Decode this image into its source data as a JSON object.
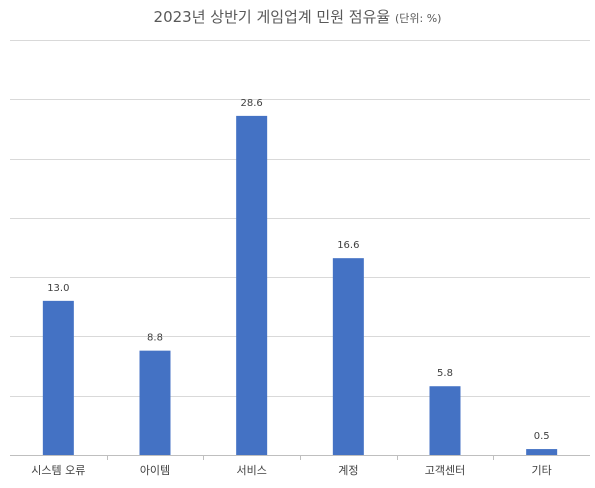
{
  "chart_data": {
    "type": "bar",
    "title": "2023년 상반기 게임업계 민원 점유율",
    "subtitle": "(단위: %)",
    "categories": [
      "시스템 오류",
      "아이템",
      "서비스",
      "계정",
      "고객센터",
      "기타"
    ],
    "values": [
      13.0,
      8.8,
      28.6,
      16.6,
      5.8,
      0.5
    ],
    "value_labels": [
      "13.0",
      "8.8",
      "28.6",
      "16.6",
      "5.8",
      "0.5"
    ],
    "ylim": [
      0,
      35
    ],
    "grid": true,
    "colors": {
      "bar": "#4472c4"
    }
  }
}
